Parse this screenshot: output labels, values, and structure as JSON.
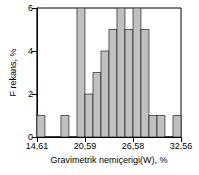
{
  "chart_data": {
    "type": "histogram",
    "xlabel": "Gravimetrik nemiçerigi(W), %",
    "ylabel": "F rekans, %",
    "bins": [
      14.61,
      15.61,
      16.6,
      17.6,
      18.6,
      19.6,
      20.59,
      21.59,
      22.59,
      23.58,
      24.58,
      25.58,
      26.58,
      27.57,
      28.57,
      29.57,
      30.56,
      31.56,
      32.56
    ],
    "values": [
      1,
      0,
      0,
      1,
      0,
      6,
      2,
      3,
      4,
      5,
      6,
      5,
      6,
      5,
      1,
      1,
      0,
      1
    ],
    "color": "#c0c0c0",
    "xlim": [
      14.61,
      32.56
    ],
    "xticks": [
      {
        "value": 14.61,
        "label": "14,61"
      },
      {
        "value": 20.59,
        "label": "20,59"
      },
      {
        "value": 26.58,
        "label": "26,58"
      },
      {
        "value": 32.56,
        "label": "32,56"
      }
    ],
    "ylim": [
      0,
      6
    ],
    "yticks": [
      0,
      2,
      4,
      6
    ],
    "grid": false
  }
}
